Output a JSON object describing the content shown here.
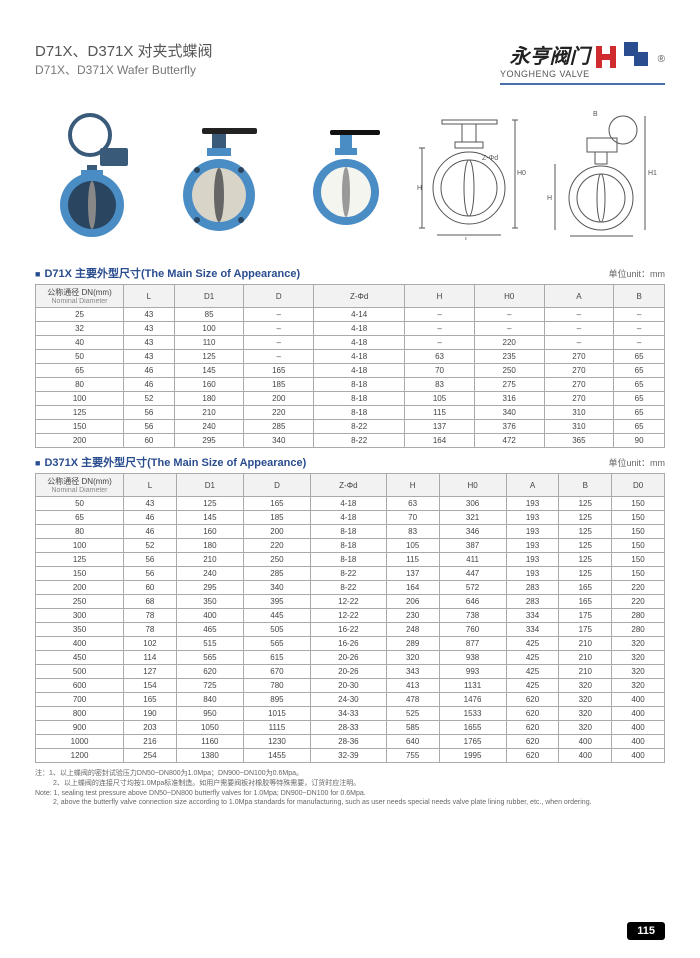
{
  "header": {
    "title_cn": "D71X、D371X 对夹式蝶阀",
    "title_en": "D71X、D371X Wafer Butterfly",
    "brand_cn": "永亨阀门",
    "brand_en": "YONGHENG VALVE",
    "logo_color_primary": "#d02b2e",
    "logo_color_secondary": "#2a4d8f"
  },
  "product_images": {
    "valve_body_color": "#4a8cc4",
    "valve_dark_color": "#3a5a7a",
    "diagram_stroke": "#555555"
  },
  "table1": {
    "title": "D71X 主要外型尺寸(The Main Size of Appearance)",
    "unit": "单位unit：mm",
    "columns": [
      "公称通径 DN(mm)",
      "L",
      "D1",
      "D",
      "Z-Φd",
      "H",
      "H0",
      "A",
      "B"
    ],
    "col_sub": "Nominal Diameter",
    "rows": [
      [
        "25",
        "43",
        "85",
        "–",
        "4-14",
        "–",
        "–",
        "–",
        "–"
      ],
      [
        "32",
        "43",
        "100",
        "–",
        "4-18",
        "–",
        "–",
        "–",
        "–"
      ],
      [
        "40",
        "43",
        "110",
        "–",
        "4-18",
        "–",
        "220",
        "–",
        "–"
      ],
      [
        "50",
        "43",
        "125",
        "–",
        "4-18",
        "63",
        "235",
        "270",
        "65"
      ],
      [
        "65",
        "46",
        "145",
        "165",
        "4-18",
        "70",
        "250",
        "270",
        "65"
      ],
      [
        "80",
        "46",
        "160",
        "185",
        "8-18",
        "83",
        "275",
        "270",
        "65"
      ],
      [
        "100",
        "52",
        "180",
        "200",
        "8-18",
        "105",
        "316",
        "270",
        "65"
      ],
      [
        "125",
        "56",
        "210",
        "220",
        "8-18",
        "115",
        "340",
        "310",
        "65"
      ],
      [
        "150",
        "56",
        "240",
        "285",
        "8-22",
        "137",
        "376",
        "310",
        "65"
      ],
      [
        "200",
        "60",
        "295",
        "340",
        "8-22",
        "164",
        "472",
        "365",
        "90"
      ]
    ]
  },
  "table2": {
    "title": "D371X 主要外型尺寸(The Main Size of Appearance)",
    "unit": "单位unit：mm",
    "columns": [
      "公称通径 DN(mm)",
      "L",
      "D1",
      "D",
      "Z-Φd",
      "H",
      "H0",
      "A",
      "B",
      "D0"
    ],
    "col_sub": "Nominal Diameter",
    "rows": [
      [
        "50",
        "43",
        "125",
        "165",
        "4-18",
        "63",
        "306",
        "193",
        "125",
        "150"
      ],
      [
        "65",
        "46",
        "145",
        "185",
        "4-18",
        "70",
        "321",
        "193",
        "125",
        "150"
      ],
      [
        "80",
        "46",
        "160",
        "200",
        "8-18",
        "83",
        "346",
        "193",
        "125",
        "150"
      ],
      [
        "100",
        "52",
        "180",
        "220",
        "8-18",
        "105",
        "387",
        "193",
        "125",
        "150"
      ],
      [
        "125",
        "56",
        "210",
        "250",
        "8-18",
        "115",
        "411",
        "193",
        "125",
        "150"
      ],
      [
        "150",
        "56",
        "240",
        "285",
        "8-22",
        "137",
        "447",
        "193",
        "125",
        "150"
      ],
      [
        "200",
        "60",
        "295",
        "340",
        "8-22",
        "164",
        "572",
        "283",
        "165",
        "220"
      ],
      [
        "250",
        "68",
        "350",
        "395",
        "12-22",
        "206",
        "646",
        "283",
        "165",
        "220"
      ],
      [
        "300",
        "78",
        "400",
        "445",
        "12-22",
        "230",
        "738",
        "334",
        "175",
        "280"
      ],
      [
        "350",
        "78",
        "465",
        "505",
        "16-22",
        "248",
        "760",
        "334",
        "175",
        "280"
      ],
      [
        "400",
        "102",
        "515",
        "565",
        "16-26",
        "289",
        "877",
        "425",
        "210",
        "320"
      ],
      [
        "450",
        "114",
        "565",
        "615",
        "20-26",
        "320",
        "938",
        "425",
        "210",
        "320"
      ],
      [
        "500",
        "127",
        "620",
        "670",
        "20-26",
        "343",
        "993",
        "425",
        "210",
        "320"
      ],
      [
        "600",
        "154",
        "725",
        "780",
        "20-30",
        "413",
        "1131",
        "425",
        "320",
        "320"
      ],
      [
        "700",
        "165",
        "840",
        "895",
        "24-30",
        "478",
        "1476",
        "620",
        "320",
        "400"
      ],
      [
        "800",
        "190",
        "950",
        "1015",
        "34-33",
        "525",
        "1533",
        "620",
        "320",
        "400"
      ],
      [
        "900",
        "203",
        "1050",
        "1115",
        "28-33",
        "585",
        "1655",
        "620",
        "320",
        "400"
      ],
      [
        "1000",
        "216",
        "1160",
        "1230",
        "28-36",
        "640",
        "1765",
        "620",
        "400",
        "400"
      ],
      [
        "1200",
        "254",
        "1380",
        "1455",
        "32-39",
        "755",
        "1995",
        "620",
        "400",
        "400"
      ]
    ]
  },
  "notes": {
    "line1": "注：1、以上蝶阀的密封试验压力DN50~DN800为1.0Mpa；DN900~DN100为0.6Mpa。",
    "line2": "2、以上蝶阀的连接尺寸均按1.0Mpa标准制造。如用户需要阀板衬橡胶等特殊需要，订货时应注明。",
    "line3": "Note: 1, sealing test pressure above DN50~DN800 butterfly valves for 1.0Mpa; DN900~DN100 for 0.6Mpa.",
    "line4": "2, above the butterfly valve connection size according to 1.0Mpa standards for manufacturing, such as user needs special needs valve plate lining rubber, etc., when ordering."
  },
  "page_number": "115"
}
